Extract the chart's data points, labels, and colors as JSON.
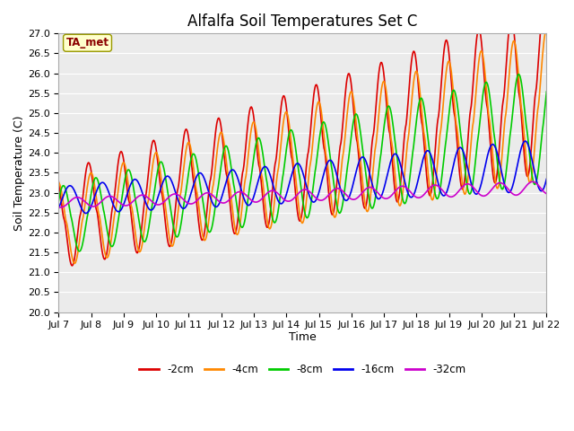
{
  "title": "Alfalfa Soil Temperatures Set C",
  "xlabel": "Time",
  "ylabel": "Soil Temperature (C)",
  "ylim": [
    20.0,
    27.0
  ],
  "yticks": [
    20.0,
    20.5,
    21.0,
    21.5,
    22.0,
    22.5,
    23.0,
    23.5,
    24.0,
    24.5,
    25.0,
    25.5,
    26.0,
    26.5,
    27.0
  ],
  "xtick_labels": [
    "Jul 7",
    "Jul 8",
    "Jul 9",
    "Jul 10",
    "Jul 11",
    "Jul 12",
    "Jul 13",
    "Jul 14",
    "Jul 15",
    "Jul 16",
    "Jul 17",
    "Jul 18",
    "Jul 19",
    "Jul 20",
    "Jul 21",
    "Jul 22"
  ],
  "colors": {
    "-2cm": "#dd0000",
    "-4cm": "#ff8800",
    "-8cm": "#00cc00",
    "-16cm": "#0000ee",
    "-32cm": "#cc00cc"
  },
  "line_width": 1.2,
  "legend_labels": [
    "-2cm",
    "-4cm",
    "-8cm",
    "-16cm",
    "-32cm"
  ],
  "ta_met_label": "TA_met",
  "fig_bg_color": "#ffffff",
  "plot_bg_color": "#ebebeb",
  "grid_color": "#ffffff",
  "title_fontsize": 12,
  "axis_label_fontsize": 9,
  "tick_fontsize": 8
}
